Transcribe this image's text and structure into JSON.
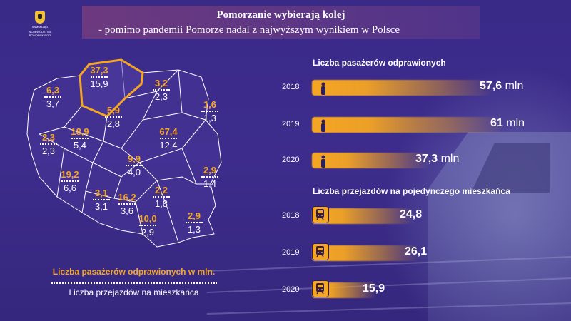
{
  "logo": {
    "text_line1": "SAMORZĄD",
    "text_line2": "WOJEWÓDZTWA POMORSKIEGO"
  },
  "header": {
    "title": "Pomorzanie wybierają kolej",
    "subtitle": "- pomimo pandemii Pomorze nadal z najwyższym wynikiem w Polsce"
  },
  "map": {
    "regions": [
      {
        "id": "pomorskie",
        "passengers": "37,3",
        "trips": "15,9"
      },
      {
        "id": "zachodniopomorskie",
        "passengers": "6,3",
        "trips": "3,7"
      },
      {
        "id": "warminsko-mazurskie",
        "passengers": "3,2",
        "trips": "2,3"
      },
      {
        "id": "podlaskie",
        "passengers": "1,6",
        "trips": "1,3"
      },
      {
        "id": "kujawsko-pomorskie",
        "passengers": "5,9",
        "trips": "2,8"
      },
      {
        "id": "lubuskie",
        "passengers": "2,3",
        "trips": "2,3"
      },
      {
        "id": "wielkopolskie",
        "passengers": "18,9",
        "trips": "5,4"
      },
      {
        "id": "mazowieckie",
        "passengers": "67,4",
        "trips": "12,4"
      },
      {
        "id": "lodzkie",
        "passengers": "9,9",
        "trips": "4,0"
      },
      {
        "id": "lubelskie",
        "passengers": "2,9",
        "trips": "1,4"
      },
      {
        "id": "dolnoslaskie",
        "passengers": "19,2",
        "trips": "6,6"
      },
      {
        "id": "opolskie",
        "passengers": "3,1",
        "trips": "3,1"
      },
      {
        "id": "slaskie",
        "passengers": "16,2",
        "trips": "3,6"
      },
      {
        "id": "swietokrzyskie",
        "passengers": "2,2",
        "trips": "1,8"
      },
      {
        "id": "malopolskie",
        "passengers": "10,0",
        "trips": "2,9"
      },
      {
        "id": "podkarpackie",
        "passengers": "2,9",
        "trips": "1,3"
      }
    ],
    "legend_passengers": "Liczba pasażerów odprawionych w mln.",
    "legend_trips": "Liczba przejazdów na mieszkańca",
    "highlight_color": "#f5a623"
  },
  "passengers_section": {
    "title": "Liczba pasażerów odprawionych",
    "rows": [
      {
        "year": "2018",
        "value": "57,6",
        "unit": "mln",
        "num": 57.6
      },
      {
        "year": "2019",
        "value": "61",
        "unit": "mln",
        "num": 61
      },
      {
        "year": "2020",
        "value": "37,3",
        "unit": "mln",
        "num": 37.3
      }
    ],
    "icon": "person-icon"
  },
  "trips_section": {
    "title": "Liczba przejazdów na pojedynczego mieszkańca",
    "rows": [
      {
        "year": "2018",
        "value": "24,8",
        "num": 24.8
      },
      {
        "year": "2019",
        "value": "26,1",
        "num": 26.1
      },
      {
        "year": "2020",
        "value": "15,9",
        "num": 15.9
      }
    ],
    "icon": "train-icon"
  }
}
